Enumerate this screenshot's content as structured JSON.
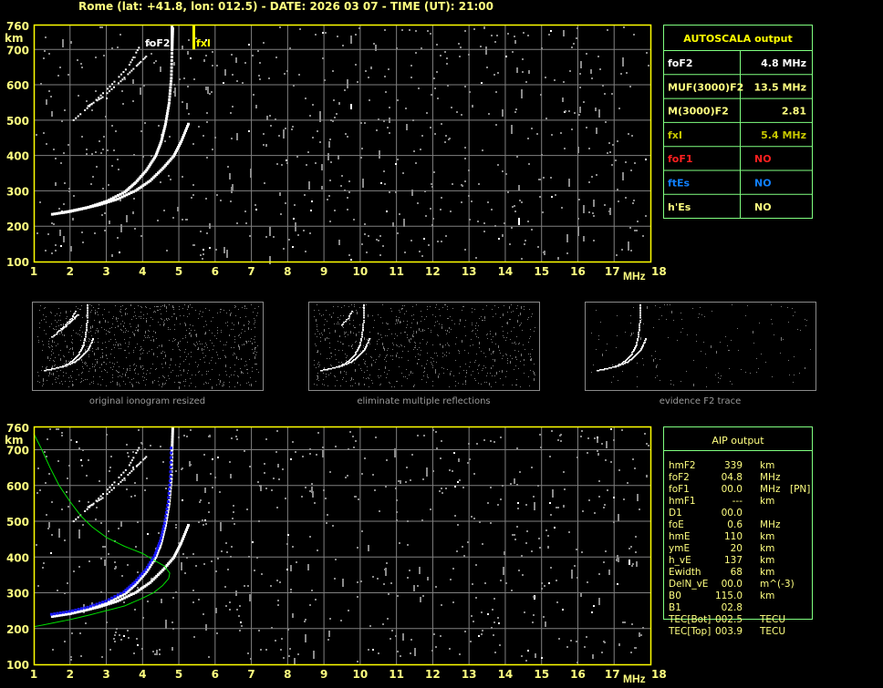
{
  "title": "Rome (lat: +41.8, lon: 012.5) - DATE: 2026 03 07 - TIME (UT): 21:00",
  "axes": {
    "y_unit": "km",
    "x_unit": "MHz",
    "y_ticks": [
      "760",
      "700",
      "600",
      "500",
      "400",
      "300",
      "200",
      "100"
    ],
    "x_ticks": [
      "1",
      "2",
      "3",
      "4",
      "5",
      "6",
      "7",
      "8",
      "9",
      "10",
      "11",
      "12",
      "13",
      "14",
      "15",
      "16",
      "17",
      "18"
    ]
  },
  "markers": {
    "foF2": "foF2",
    "fxI": "fxI"
  },
  "colors": {
    "frame": "#ffff00",
    "grid": "#808080",
    "table_border": "#80ff80",
    "profile": "#00e000",
    "fit": "#0000ff",
    "foF1": "#ff2020",
    "ftEs": "#1080ff"
  },
  "thumbnails": [
    {
      "caption": "original ionogram resized"
    },
    {
      "caption": "eliminate multiple reflections"
    },
    {
      "caption": "evidence F2 trace"
    }
  ],
  "autoscala": {
    "title": "AUTOSCALA output",
    "rows": [
      {
        "label": "foF2",
        "value": "4.8 MHz"
      },
      {
        "label": "MUF(3000)F2",
        "value": "13.5 MHz"
      },
      {
        "label": "M(3000)F2",
        "value": "2.81"
      },
      {
        "label": "fxI",
        "value": "5.4 MHz"
      },
      {
        "label": "foF1",
        "value": "NO"
      },
      {
        "label": "ftEs",
        "value": "NO"
      },
      {
        "label": "h'Es",
        "value": "NO"
      }
    ]
  },
  "aip": {
    "title": "AIP output",
    "rows": [
      {
        "label": "hmF2",
        "value": "339",
        "unit": "km",
        "extra": ""
      },
      {
        "label": "foF2",
        "value": "04.8",
        "unit": "MHz",
        "extra": ""
      },
      {
        "label": "foF1",
        "value": "00.0",
        "unit": "MHz",
        "extra": "[PN]"
      },
      {
        "label": "hmF1",
        "value": "---",
        "unit": "km",
        "extra": ""
      },
      {
        "label": "D1",
        "value": "00.0",
        "unit": "",
        "extra": ""
      },
      {
        "label": "foE",
        "value": "0.6",
        "unit": "MHz",
        "extra": ""
      },
      {
        "label": "hmE",
        "value": "110",
        "unit": "km",
        "extra": ""
      },
      {
        "label": "ymE",
        "value": "20",
        "unit": "km",
        "extra": ""
      },
      {
        "label": "h_vE",
        "value": "137",
        "unit": "km",
        "extra": ""
      },
      {
        "label": "Ewidth",
        "value": "68",
        "unit": "km",
        "extra": ""
      },
      {
        "label": "DelN_vE",
        "value": "00.0",
        "unit": "m^(-3)",
        "extra": ""
      },
      {
        "label": "B0",
        "value": "115.0",
        "unit": "km",
        "extra": ""
      },
      {
        "label": "B1",
        "value": "02.8",
        "unit": "",
        "extra": ""
      },
      {
        "label": "TEC[Bot]",
        "value": "002.5",
        "unit": "TECU",
        "extra": ""
      },
      {
        "label": "TEC[Top]",
        "value": "003.9",
        "unit": "TECU",
        "extra": ""
      }
    ]
  }
}
